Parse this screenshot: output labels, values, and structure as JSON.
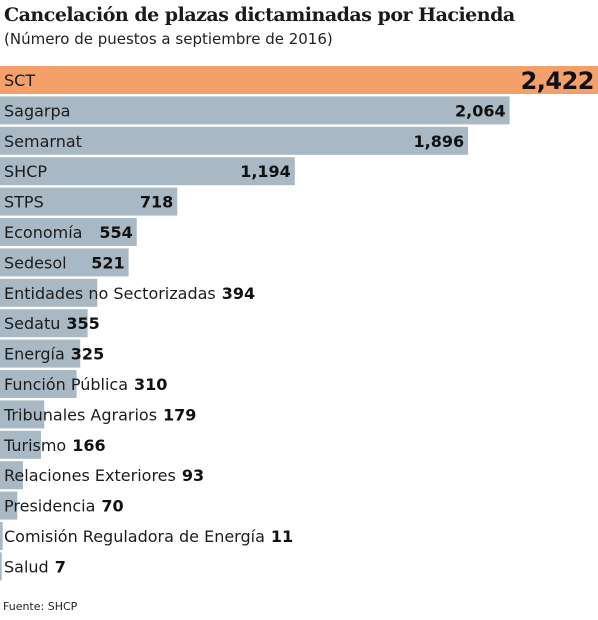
{
  "title": "Cancelación de plazas dictaminadas por Hacienda",
  "subtitle": "(Número de puestos a septiembre de 2016)",
  "source": "Fuente: SHCP",
  "colors": {
    "highlight": "#f4a06b",
    "bar": "#a8b9c5"
  },
  "chart_data": {
    "type": "bar",
    "orientation": "horizontal",
    "categories": [
      "SCT",
      "Sagarpa",
      "Semarnat",
      "SHCP",
      "STPS",
      "Economía",
      "Sedesol",
      "Entidades no Sectorizadas",
      "Sedatu",
      "Energía",
      "Función Pública",
      "Tribunales Agrarios",
      "Turismo",
      "Relaciones Exteriores",
      "Presidencia",
      "Comisión Reguladora de Energía",
      "Salud"
    ],
    "values": [
      2422,
      2064,
      1896,
      1194,
      718,
      554,
      521,
      394,
      355,
      325,
      310,
      179,
      166,
      93,
      70,
      11,
      7
    ],
    "value_labels": [
      "2,422",
      "2,064",
      "1,896",
      "1,194",
      "718",
      "554",
      "521",
      "394",
      "355",
      "325",
      "310",
      "179",
      "166",
      "93",
      "70",
      "11",
      "7"
    ],
    "highlighted": [
      "SCT"
    ]
  }
}
